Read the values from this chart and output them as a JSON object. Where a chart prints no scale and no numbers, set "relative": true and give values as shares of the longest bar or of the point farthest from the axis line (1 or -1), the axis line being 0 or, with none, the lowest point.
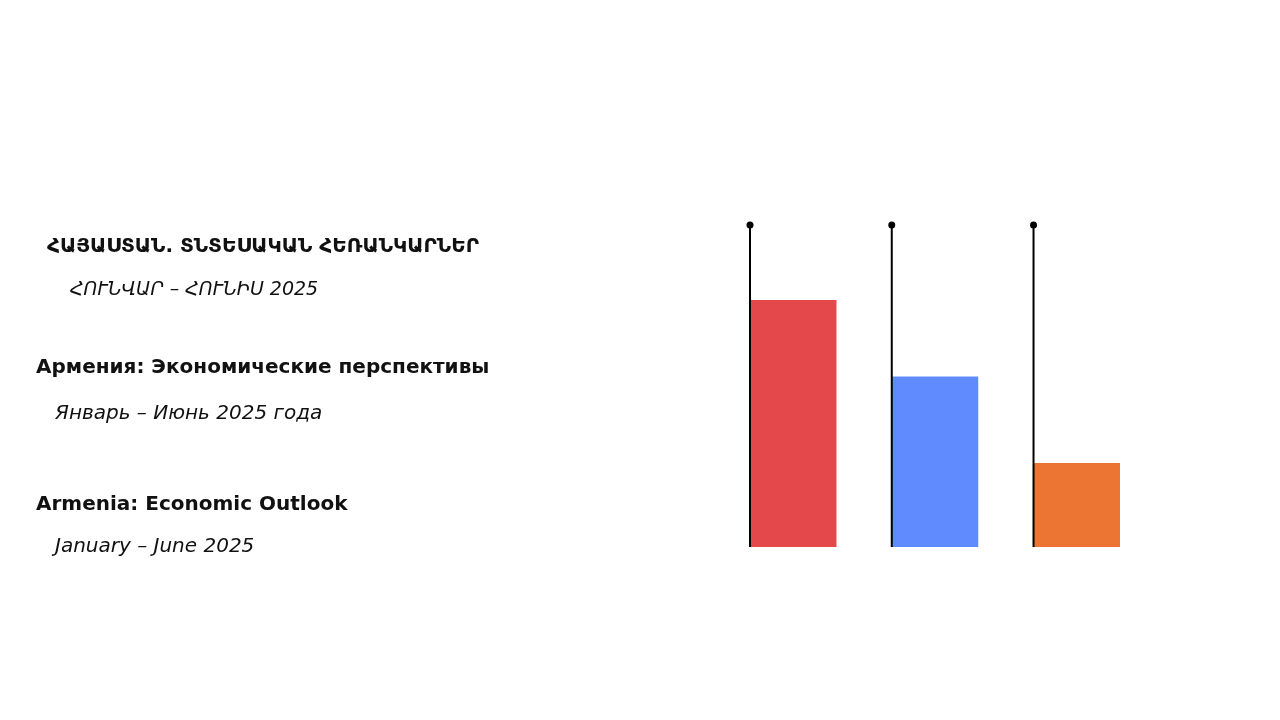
{
  "chart_data": {
    "type": "bar",
    "relative": true,
    "title": "ՀԱՅԱՍՏԱՆ. ՏՆՏԵՍԱԿԱՆ ՀԵՌԱՆԿԱՐՆԵՐ",
    "subtitle": "ՀՈՒՆՎԱՐ – ՀՈՒՆԻՍ 2025",
    "annotations": [
      "Армения: Экономические перспективы",
      "Январь – Июнь 2025 года",
      "Armenia: Economic Outlook",
      "January – June 2025"
    ],
    "categories": [
      null,
      null,
      null
    ],
    "values": [
      1,
      0.69,
      0.34
    ],
    "colors": [
      "#e5484a",
      "#5f8bff",
      "#ec7533"
    ]
  }
}
